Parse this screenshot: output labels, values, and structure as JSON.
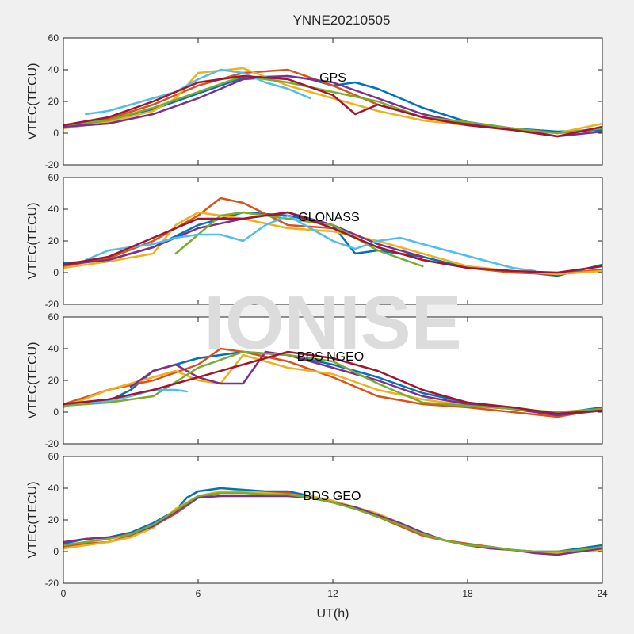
{
  "chart_data": [
    {
      "type": "line",
      "title": "YNNE20210505",
      "panel_label": "GPS",
      "ylabel": "VTEC(TECU)",
      "xlabel": "",
      "xlim": [
        0,
        24
      ],
      "ylim": [
        -20,
        60
      ],
      "xticks": [
        "",
        "",
        "",
        "",
        ""
      ],
      "yticks": [
        "-20",
        "0",
        "20",
        "40",
        "60"
      ],
      "grid": false,
      "series": [
        {
          "color": "#0072BD",
          "x": [
            0,
            2,
            4,
            6,
            8,
            10,
            11,
            12,
            13,
            14,
            16,
            18,
            20,
            22,
            24
          ],
          "y": [
            4,
            8,
            15,
            25,
            35,
            36,
            34,
            30,
            32,
            28,
            16,
            7,
            3,
            1,
            2
          ]
        },
        {
          "color": "#D95319",
          "x": [
            0,
            2,
            4,
            6,
            8,
            10,
            12,
            14,
            16,
            18,
            20,
            22,
            24
          ],
          "y": [
            5,
            9,
            18,
            30,
            38,
            40,
            30,
            18,
            10,
            6,
            3,
            0,
            3
          ]
        },
        {
          "color": "#EDB120",
          "x": [
            0,
            2,
            4,
            5,
            6,
            8,
            10,
            12,
            14,
            16,
            18,
            20,
            22,
            24
          ],
          "y": [
            3,
            7,
            14,
            22,
            38,
            41,
            30,
            22,
            14,
            8,
            5,
            2,
            0,
            6
          ]
        },
        {
          "color": "#7E2F8E",
          "x": [
            0,
            2,
            4,
            6,
            8,
            10,
            12,
            14,
            16,
            18,
            20,
            22,
            24
          ],
          "y": [
            4,
            6,
            12,
            22,
            34,
            36,
            32,
            22,
            12,
            6,
            3,
            -2,
            1
          ]
        },
        {
          "color": "#77AC30",
          "x": [
            0,
            2,
            4,
            6,
            8,
            10,
            12,
            14,
            16,
            18,
            20,
            22,
            24
          ],
          "y": [
            5,
            8,
            16,
            26,
            36,
            32,
            26,
            20,
            10,
            7,
            3,
            0,
            3
          ]
        },
        {
          "color": "#4DBEEE",
          "x": [
            1,
            2,
            3,
            4,
            5,
            6,
            7,
            8,
            9,
            10,
            11
          ],
          "y": [
            12,
            14,
            18,
            22,
            26,
            34,
            40,
            38,
            32,
            28,
            22
          ]
        },
        {
          "color": "#A2142F",
          "x": [
            0,
            2,
            4,
            6,
            8,
            10,
            12,
            13,
            14,
            16,
            18,
            20,
            22,
            24
          ],
          "y": [
            5,
            10,
            20,
            32,
            36,
            34,
            24,
            12,
            18,
            10,
            5,
            2,
            -2,
            4
          ]
        }
      ]
    },
    {
      "type": "line",
      "panel_label": "GLONASS",
      "ylabel": "VTEC(TECU)",
      "xlabel": "",
      "xlim": [
        0,
        24
      ],
      "ylim": [
        -20,
        60
      ],
      "xticks": [
        "",
        "",
        "",
        "",
        ""
      ],
      "yticks": [
        "-20",
        "0",
        "20",
        "40",
        "60"
      ],
      "grid": false,
      "series": [
        {
          "color": "#0072BD",
          "x": [
            0,
            2,
            4,
            6,
            8,
            10,
            12,
            13,
            14,
            16,
            18,
            20,
            22,
            24
          ],
          "y": [
            6,
            8,
            16,
            30,
            38,
            36,
            30,
            12,
            14,
            10,
            3,
            1,
            -2,
            5
          ]
        },
        {
          "color": "#D95319",
          "x": [
            0,
            2,
            4,
            6,
            7,
            8,
            10,
            12,
            14,
            16,
            18,
            20,
            22,
            24
          ],
          "y": [
            4,
            9,
            20,
            36,
            47,
            44,
            30,
            28,
            16,
            8,
            3,
            0,
            -1,
            2
          ]
        },
        {
          "color": "#EDB120",
          "x": [
            0,
            2,
            4,
            5,
            6,
            8,
            10,
            12,
            14,
            16,
            18,
            20,
            22,
            24
          ],
          "y": [
            3,
            7,
            12,
            30,
            38,
            34,
            28,
            26,
            20,
            12,
            4,
            1,
            -1,
            1
          ]
        },
        {
          "color": "#7E2F8E",
          "x": [
            0,
            2,
            4,
            6,
            8,
            10,
            12,
            14,
            16
          ],
          "y": [
            5,
            8,
            16,
            28,
            34,
            38,
            30,
            18,
            10
          ]
        },
        {
          "color": "#77AC30",
          "x": [
            5,
            6,
            7,
            8,
            10,
            12,
            14,
            16
          ],
          "y": [
            12,
            24,
            36,
            38,
            34,
            30,
            14,
            4
          ]
        },
        {
          "color": "#4DBEEE",
          "x": [
            1,
            2,
            3,
            4,
            5,
            6,
            7,
            8,
            9,
            10,
            11,
            12,
            13,
            14,
            15,
            16,
            20,
            21
          ],
          "y": [
            8,
            14,
            16,
            18,
            22,
            24,
            24,
            20,
            30,
            36,
            28,
            20,
            15,
            20,
            22,
            18,
            3,
            1
          ]
        },
        {
          "color": "#A2142F",
          "x": [
            0,
            2,
            4,
            6,
            8,
            10,
            12,
            14,
            16,
            18,
            20,
            22,
            24
          ],
          "y": [
            5,
            10,
            22,
            34,
            34,
            38,
            28,
            16,
            8,
            3,
            1,
            0,
            4
          ]
        }
      ]
    },
    {
      "type": "line",
      "panel_label": "BDS NGEO",
      "ylabel": "VTEC(TECU)",
      "xlabel": "",
      "xlim": [
        0,
        24
      ],
      "ylim": [
        -20,
        60
      ],
      "xticks": [
        "",
        "",
        "",
        "",
        ""
      ],
      "yticks": [
        "-20",
        "0",
        "20",
        "40",
        "60"
      ],
      "grid": false,
      "series": [
        {
          "color": "#0072BD",
          "x": [
            0,
            2,
            3,
            4,
            6,
            8,
            10,
            12,
            14,
            16,
            18,
            20,
            22,
            24
          ],
          "y": [
            4,
            7,
            14,
            26,
            34,
            38,
            36,
            30,
            22,
            12,
            6,
            2,
            -1,
            3
          ]
        },
        {
          "color": "#D95319",
          "x": [
            0,
            2,
            4,
            6,
            7,
            8,
            10,
            12,
            14,
            16,
            18,
            20,
            22,
            24
          ],
          "y": [
            5,
            14,
            20,
            30,
            40,
            38,
            32,
            22,
            10,
            5,
            3,
            0,
            -3,
            2
          ]
        },
        {
          "color": "#EDB120",
          "x": [
            0,
            2,
            4,
            5,
            6,
            7,
            8,
            10,
            12,
            14,
            16,
            18,
            20,
            22,
            24
          ],
          "y": [
            3,
            14,
            22,
            26,
            20,
            18,
            36,
            28,
            24,
            14,
            8,
            4,
            2,
            -1,
            2
          ]
        },
        {
          "color": "#7E2F8E",
          "x": [
            3,
            4,
            5,
            6,
            7,
            8,
            9,
            10,
            12,
            14,
            16,
            18,
            20,
            22,
            24
          ],
          "y": [
            16,
            26,
            30,
            22,
            18,
            18,
            38,
            36,
            28,
            20,
            10,
            5,
            2,
            -2,
            1
          ]
        },
        {
          "color": "#77AC30",
          "x": [
            0,
            2,
            4,
            6,
            8,
            10,
            12,
            14,
            16,
            18,
            20,
            22,
            24
          ],
          "y": [
            4,
            6,
            10,
            28,
            38,
            36,
            32,
            18,
            6,
            4,
            2,
            0,
            2
          ]
        },
        {
          "color": "#4DBEEE",
          "x": [
            0,
            1,
            2,
            3,
            4,
            5,
            5.5
          ],
          "y": [
            5,
            6,
            7,
            10,
            14,
            14,
            13
          ]
        },
        {
          "color": "#A2142F",
          "x": [
            0,
            2,
            4,
            6,
            8,
            10,
            12,
            14,
            16,
            18,
            20,
            22,
            24
          ],
          "y": [
            5,
            8,
            14,
            22,
            30,
            38,
            34,
            26,
            14,
            6,
            3,
            -1,
            1
          ]
        }
      ]
    },
    {
      "type": "line",
      "panel_label": "BDS GEO",
      "ylabel": "VTEC(TECU)",
      "xlabel": "UT(h)",
      "xlim": [
        0,
        24
      ],
      "ylim": [
        -20,
        60
      ],
      "xticks": [
        "0",
        "6",
        "12",
        "18",
        "24"
      ],
      "yticks": [
        "-20",
        "0",
        "20",
        "40",
        "60"
      ],
      "grid": false,
      "series": [
        {
          "color": "#0072BD",
          "x": [
            0,
            1,
            2,
            3,
            4,
            5,
            5.5,
            6,
            7,
            8,
            9,
            10,
            11,
            12,
            13,
            14,
            15,
            16,
            17,
            18,
            19,
            20,
            21,
            22,
            23,
            24
          ],
          "y": [
            5,
            8,
            9,
            12,
            18,
            26,
            34,
            38,
            40,
            39,
            38,
            38,
            35,
            32,
            27,
            22,
            17,
            11,
            7,
            4,
            3,
            1,
            0,
            0,
            2,
            4
          ]
        },
        {
          "color": "#D95319",
          "x": [
            0,
            1,
            2,
            3,
            4,
            5,
            6,
            7,
            8,
            9,
            10,
            11,
            12,
            13,
            14,
            15,
            16,
            17,
            18,
            19,
            20,
            21,
            22,
            23,
            24
          ],
          "y": [
            3,
            5,
            6,
            10,
            16,
            24,
            34,
            37,
            37,
            37,
            37,
            34,
            31,
            27,
            22,
            16,
            10,
            7,
            5,
            3,
            1,
            0,
            -1,
            0,
            2
          ]
        },
        {
          "color": "#EDB120",
          "x": [
            0,
            1,
            2,
            3,
            4,
            5,
            6,
            7,
            8,
            9,
            10,
            11,
            12,
            13,
            14,
            15,
            16,
            17,
            18,
            19,
            20,
            21,
            22,
            23,
            24
          ],
          "y": [
            2,
            4,
            6,
            9,
            15,
            27,
            35,
            38,
            38,
            37,
            36,
            35,
            32,
            28,
            24,
            18,
            12,
            7,
            4,
            2,
            1,
            0,
            -1,
            0,
            1
          ]
        },
        {
          "color": "#7E2F8E",
          "x": [
            0,
            1,
            2,
            3,
            4,
            5,
            6,
            7,
            8,
            9,
            10,
            11,
            12,
            13,
            14,
            15,
            16,
            17,
            18,
            19,
            20,
            21,
            22,
            23,
            24
          ],
          "y": [
            6,
            8,
            9,
            11,
            16,
            25,
            34,
            35,
            35,
            35,
            35,
            34,
            31,
            28,
            23,
            18,
            12,
            7,
            4,
            2,
            1,
            -1,
            -2,
            0,
            2
          ]
        },
        {
          "color": "#77AC30",
          "x": [
            0,
            1,
            2,
            3,
            4,
            5,
            6,
            7,
            8,
            9,
            10,
            11,
            12,
            13,
            14,
            15,
            16,
            17,
            18,
            19,
            20,
            21,
            22,
            23,
            24
          ],
          "y": [
            4,
            6,
            8,
            11,
            17,
            26,
            35,
            37,
            37,
            36,
            36,
            34,
            31,
            27,
            22,
            17,
            11,
            7,
            4,
            3,
            1,
            0,
            0,
            1,
            3
          ]
        }
      ]
    }
  ],
  "watermark": "IONISE"
}
